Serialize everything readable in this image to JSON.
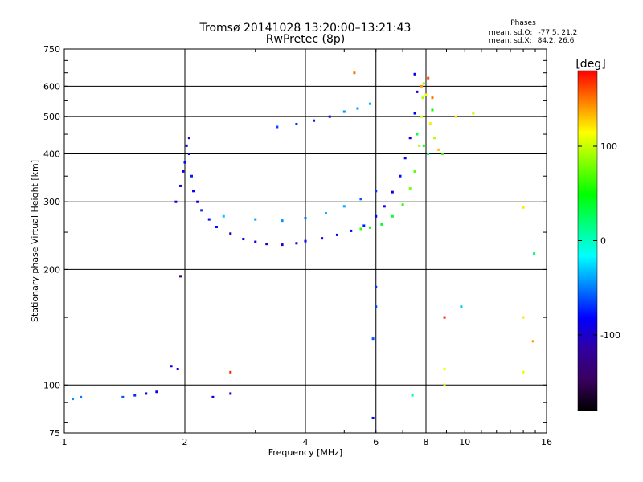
{
  "chart_data": {
    "type": "scatter",
    "title": "Tromsø 20141028 13:20:00–13:21:43",
    "subtitle": "RwPretec (8p)",
    "xlabel": "Frequency [MHz]",
    "ylabel": "Stationary phase Virtual Height [km]",
    "x_scale": "log",
    "y_scale": "log",
    "xlim": [
      1,
      16
    ],
    "ylim": [
      75,
      750
    ],
    "x_ticks": [
      1,
      2,
      4,
      6,
      8,
      10,
      16
    ],
    "x_tick_labels": [
      "1",
      "2",
      "4",
      "6",
      "8",
      "10",
      "16"
    ],
    "x_grid": [
      2,
      4,
      6,
      8
    ],
    "y_ticks": [
      75,
      100,
      200,
      300,
      400,
      500,
      600,
      750
    ],
    "y_tick_labels": [
      "75",
      "100",
      "200",
      "300",
      "400",
      "500",
      "600",
      "750"
    ],
    "y_grid": [
      100,
      200,
      300,
      400,
      500,
      600
    ],
    "grid": true,
    "phase_title": "Phases",
    "phase_stats": [
      {
        "label": "mean, sd,O:",
        "value": "-77.5, 21.2"
      },
      {
        "label": "mean, sd,X:",
        "value": "84.2, 26.6"
      }
    ],
    "colorbar": {
      "label": "[deg]",
      "ticks": [
        100,
        0,
        -100
      ],
      "tick_labels": [
        "100",
        "0",
        "-100"
      ],
      "range": [
        -180,
        180
      ],
      "colors": [
        "#000000",
        "#3a0060",
        "#3000a0",
        "#0000ff",
        "#0080ff",
        "#00ffff",
        "#00ff80",
        "#00ff00",
        "#80ff00",
        "#ffff00",
        "#ff8000",
        "#ff0000"
      ]
    },
    "series": [
      {
        "mode": "O",
        "points": [
          [
            1.9,
            300,
            -90
          ],
          [
            1.95,
            330,
            -95
          ],
          [
            1.98,
            360,
            -88
          ],
          [
            2.0,
            380,
            -85
          ],
          [
            2.02,
            420,
            -92
          ],
          [
            2.05,
            440,
            -96
          ],
          [
            2.05,
            400,
            -80
          ],
          [
            2.08,
            350,
            -75
          ],
          [
            2.1,
            320,
            -85
          ],
          [
            2.15,
            300,
            -90
          ],
          [
            2.2,
            285,
            -70
          ],
          [
            2.3,
            270,
            -85
          ],
          [
            2.4,
            258,
            -80
          ],
          [
            2.6,
            248,
            -95
          ],
          [
            2.8,
            240,
            -85
          ],
          [
            3.0,
            236,
            -90
          ],
          [
            3.2,
            233,
            -100
          ],
          [
            3.5,
            232,
            -95
          ],
          [
            3.8,
            234,
            -90
          ],
          [
            4.0,
            237,
            -85
          ],
          [
            4.4,
            241,
            -88
          ],
          [
            4.8,
            246,
            -95
          ],
          [
            5.2,
            252,
            -80
          ],
          [
            5.6,
            260,
            -75
          ],
          [
            6.0,
            275,
            -85
          ],
          [
            6.3,
            292,
            -90
          ],
          [
            6.6,
            318,
            -95
          ],
          [
            6.9,
            350,
            -80
          ],
          [
            7.1,
            390,
            -88
          ],
          [
            7.3,
            440,
            -92
          ],
          [
            7.5,
            510,
            -85
          ],
          [
            7.6,
            580,
            -100
          ],
          [
            2.5,
            275,
            -30
          ],
          [
            3.0,
            270,
            -40
          ],
          [
            3.5,
            268,
            -45
          ],
          [
            4.0,
            272,
            -50
          ],
          [
            4.5,
            280,
            -35
          ],
          [
            5.0,
            292,
            -40
          ],
          [
            5.5,
            305,
            -60
          ],
          [
            6.0,
            320,
            -70
          ],
          [
            3.4,
            470,
            -65
          ],
          [
            3.8,
            478,
            -70
          ],
          [
            4.2,
            488,
            -75
          ],
          [
            4.6,
            500,
            -80
          ],
          [
            5.0,
            515,
            -45
          ],
          [
            5.4,
            525,
            -40
          ],
          [
            5.8,
            540,
            -35
          ],
          [
            7.5,
            645,
            -85
          ],
          [
            1.05,
            92,
            -45
          ],
          [
            1.1,
            93,
            -50
          ],
          [
            1.4,
            93,
            -60
          ],
          [
            1.5,
            94,
            -70
          ],
          [
            1.6,
            95,
            -80
          ],
          [
            1.7,
            96,
            -90
          ],
          [
            1.85,
            112,
            -85
          ],
          [
            1.92,
            110,
            -95
          ],
          [
            1.95,
            192,
            -140
          ],
          [
            2.35,
            93,
            -90
          ],
          [
            2.6,
            95,
            -85
          ],
          [
            5.9,
            132,
            -60
          ],
          [
            5.9,
            82,
            -80
          ],
          [
            6.0,
            180,
            -70
          ],
          [
            6.0,
            160,
            -65
          ],
          [
            9.8,
            160,
            -30
          ]
        ]
      },
      {
        "mode": "X",
        "points": [
          [
            5.5,
            255,
            60
          ],
          [
            5.8,
            257,
            55
          ],
          [
            6.2,
            262,
            40
          ],
          [
            6.6,
            275,
            35
          ],
          [
            7.0,
            295,
            60
          ],
          [
            7.3,
            325,
            80
          ],
          [
            7.5,
            360,
            70
          ],
          [
            7.7,
            420,
            90
          ],
          [
            7.8,
            500,
            100
          ],
          [
            7.85,
            560,
            95
          ],
          [
            7.9,
            610,
            85
          ],
          [
            8.0,
            570,
            110
          ],
          [
            8.2,
            480,
            120
          ],
          [
            8.4,
            440,
            95
          ],
          [
            8.6,
            410,
            130
          ],
          [
            8.8,
            400,
            60
          ],
          [
            7.6,
            450,
            30
          ],
          [
            7.9,
            420,
            40
          ],
          [
            8.1,
            400,
            20
          ],
          [
            8.3,
            520,
            50
          ],
          [
            5.3,
            650,
            150
          ],
          [
            8.1,
            630,
            160
          ],
          [
            8.9,
            150,
            170
          ],
          [
            8.9,
            110,
            110
          ],
          [
            8.9,
            100,
            100
          ],
          [
            9.5,
            500,
            120
          ],
          [
            10.5,
            510,
            100
          ],
          [
            14.0,
            290,
            120
          ],
          [
            14.0,
            108,
            110
          ],
          [
            14.0,
            150,
            120
          ],
          [
            14.9,
            220,
            20
          ],
          [
            14.8,
            130,
            140
          ],
          [
            2.6,
            108,
            170
          ],
          [
            7.4,
            94,
            10
          ],
          [
            7.8,
            600,
            140
          ],
          [
            8.3,
            560,
            150
          ]
        ]
      }
    ]
  }
}
